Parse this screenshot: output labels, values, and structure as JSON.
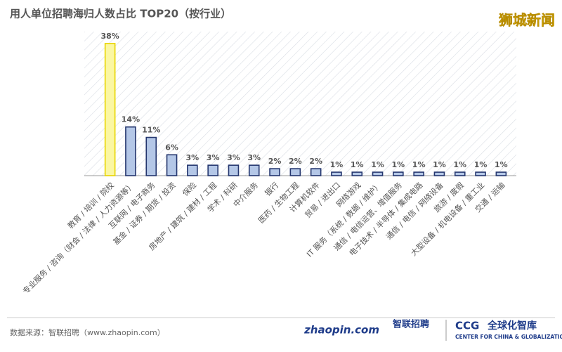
{
  "chart_data": {
    "type": "bar",
    "title": "用人单位招聘海归人数占比 TOP20（按行业）",
    "categories": [
      "教育 / 培训 / 院校",
      "专业服务 / 咨询（财会 / 法律 / 人力资源等）",
      "互联网 / 电子商务",
      "基金 / 证券 / 期货 / 投资",
      "保险",
      "房地产 / 建筑 / 建材 / 工程",
      "学术 / 科研",
      "中介服务",
      "银行",
      "医药 / 生物工程",
      "计算机软件",
      "贸易 / 进出口",
      "网络游戏",
      "IT 服务（系统 / 数据 / 维护）",
      "通信 / 电信运营、增值服务",
      "电子技术 / 半导体 / 集成电路",
      "通信 / 电信 / 网络设备",
      "旅游 / 度假",
      "大型设备 / 机电设备 / 重工业",
      "交通 / 运输"
    ],
    "values": [
      38,
      14,
      11,
      6,
      3,
      3,
      3,
      3,
      2,
      2,
      2,
      1,
      1,
      1,
      1,
      1,
      1,
      1,
      1,
      1
    ],
    "value_labels": [
      "38%",
      "14%",
      "11%",
      "6%",
      "3%",
      "3%",
      "3%",
      "3%",
      "2%",
      "2%",
      "2%",
      "1%",
      "1%",
      "1%",
      "1%",
      "1%",
      "1%",
      "1%",
      "1%",
      "1%"
    ],
    "colors": [
      "#fbf7a3",
      "#b4c7e7",
      "#b4c7e7",
      "#b4c7e7",
      "#b4c7e7",
      "#b4c7e7",
      "#b4c7e7",
      "#b4c7e7",
      "#b4c7e7",
      "#b4c7e7",
      "#b4c7e7",
      "#b4c7e7",
      "#b4c7e7",
      "#b4c7e7",
      "#b4c7e7",
      "#b4c7e7",
      "#b4c7e7",
      "#b4c7e7",
      "#b4c7e7",
      "#b4c7e7"
    ],
    "ylim": [
      0,
      40
    ]
  },
  "watermark": "狮城新闻",
  "source": "数据来源：智联招聘（www.zhaopin.com）",
  "logos": {
    "zhaopin_url": "zhaopin.com",
    "zhaopin_name": "智联招聘",
    "ccg": "CCG",
    "ccg_name": "全球化智库",
    "ccg_sub": "CENTER FOR CHINA & GLOBALIZATION"
  }
}
